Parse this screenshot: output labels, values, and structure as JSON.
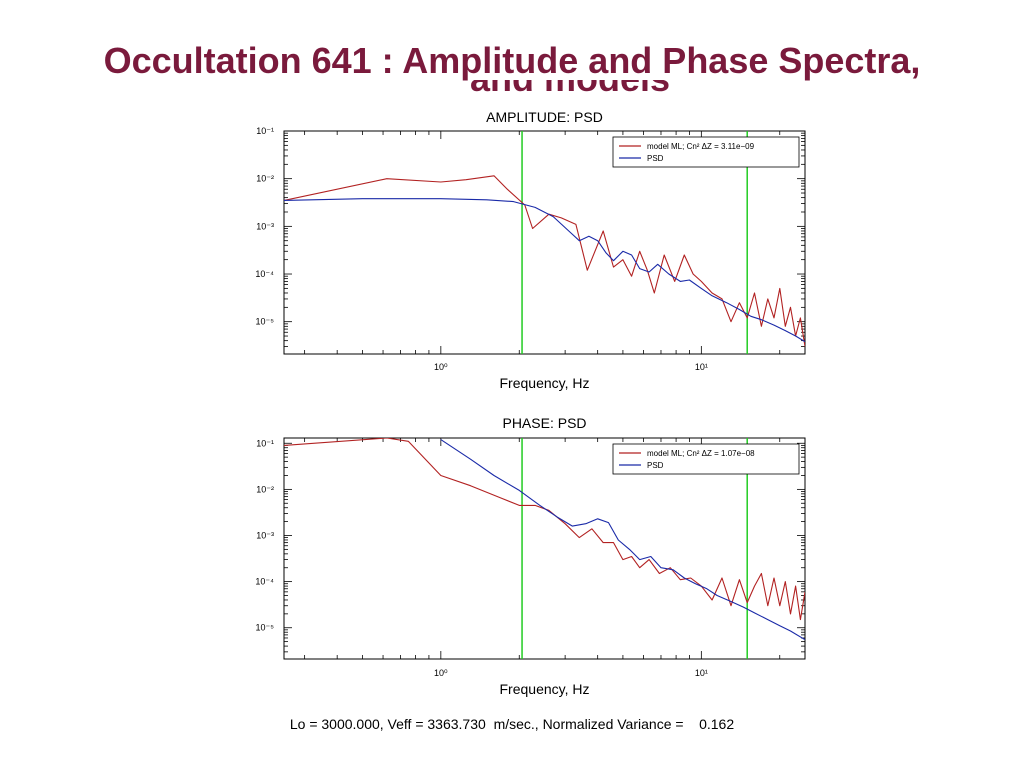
{
  "slide": {
    "title": "Occultation 641 : Amplitude and Phase Spectra,",
    "title_continued": "and models",
    "footer": "Lo = 3000.000, Veff = 3363.730  m/sec., Normalized Variance =    0.162"
  },
  "colors": {
    "title": "#7a1a3c",
    "model": "#b22222",
    "psd": "#1a2aa8",
    "marker": "#22cc22"
  },
  "chart_data": [
    {
      "type": "line",
      "title": "AMPLITUDE: PSD",
      "xlabel": "Frequency, Hz",
      "ylabel": "",
      "xscale": "log",
      "yscale": "log",
      "xlim": [
        0.25,
        25
      ],
      "ylim": [
        2.1e-06,
        0.1
      ],
      "xticks": [
        {
          "value": 1,
          "label": "10⁰"
        },
        {
          "value": 10,
          "label": "10¹"
        }
      ],
      "yticks": [
        {
          "value": 0.1,
          "label": "10⁻¹"
        },
        {
          "value": 0.01,
          "label": "10⁻²"
        },
        {
          "value": 0.001,
          "label": "10⁻³"
        },
        {
          "value": 0.0001,
          "label": "10⁻⁴"
        },
        {
          "value": 1e-05,
          "label": "10⁻⁵"
        }
      ],
      "vlines": [
        2.05,
        15.0
      ],
      "legend_position": "top-right",
      "series": [
        {
          "name": "model ML; Cn² ΔZ =  3.11e−09",
          "color": "#b22222",
          "x": [
            0.25,
            0.62,
            1.0,
            1.25,
            1.6,
            1.8,
            2.1,
            2.25,
            2.6,
            2.9,
            3.3,
            3.65,
            4.2,
            4.6,
            5.0,
            5.4,
            5.8,
            6.2,
            6.6,
            7.2,
            7.9,
            8.6,
            9.3,
            10.0,
            11.0,
            12.0,
            13.0,
            14.0,
            15.0,
            16.0,
            17.0,
            18.0,
            19.0,
            20.0,
            21.0,
            22.0,
            23.0,
            24.0,
            25.0
          ],
          "y": [
            0.0035,
            0.01,
            0.0085,
            0.0095,
            0.0115,
            0.006,
            0.0028,
            0.0009,
            0.0018,
            0.0015,
            0.0011,
            0.00012,
            0.0008,
            0.00014,
            0.0002,
            9e-05,
            0.0003,
            0.00012,
            4e-05,
            0.00025,
            7e-05,
            0.00025,
            0.0001,
            7e-05,
            4e-05,
            3e-05,
            1e-05,
            2.5e-05,
            1.2e-05,
            4e-05,
            8e-06,
            3e-05,
            1.2e-05,
            5e-05,
            8e-06,
            2e-05,
            5e-06,
            1.2e-05,
            3e-06
          ]
        },
        {
          "name": "PSD",
          "color": "#1a2aa8",
          "x": [
            0.25,
            0.5,
            1.0,
            1.5,
            1.9,
            2.3,
            2.7,
            3.1,
            3.4,
            3.7,
            4.0,
            4.3,
            4.6,
            5.0,
            5.4,
            5.8,
            6.3,
            6.8,
            7.5,
            8.3,
            9.0,
            10.0,
            11.0,
            12.5,
            14.0,
            15.5,
            17.0,
            19.0,
            21.0,
            23.0,
            25.0
          ],
          "y": [
            0.0035,
            0.0038,
            0.0038,
            0.0036,
            0.0033,
            0.0025,
            0.0016,
            0.0008,
            0.0005,
            0.00062,
            0.0005,
            0.00028,
            0.00019,
            0.0003,
            0.00025,
            0.00013,
            0.00011,
            0.00016,
            0.0001,
            7e-05,
            7.5e-05,
            5e-05,
            3.5e-05,
            2.5e-05,
            1.8e-05,
            1.3e-05,
            1.1e-05,
            8.5e-06,
            6.5e-06,
            5e-06,
            3.8e-06
          ]
        }
      ]
    },
    {
      "type": "line",
      "title": "PHASE:  PSD",
      "xlabel": "Frequency, Hz",
      "ylabel": "",
      "xscale": "log",
      "yscale": "log",
      "xlim": [
        0.25,
        25
      ],
      "ylim": [
        2.1e-06,
        0.13
      ],
      "xticks": [
        {
          "value": 1,
          "label": "10⁰"
        },
        {
          "value": 10,
          "label": "10¹"
        }
      ],
      "yticks": [
        {
          "value": 0.1,
          "label": "10⁻¹"
        },
        {
          "value": 0.01,
          "label": "10⁻²"
        },
        {
          "value": 0.001,
          "label": "10⁻³"
        },
        {
          "value": 0.0001,
          "label": "10⁻⁴"
        },
        {
          "value": 1e-05,
          "label": "10⁻⁵"
        }
      ],
      "vlines": [
        2.05,
        15.0
      ],
      "legend_position": "top-right",
      "series": [
        {
          "name": "model ML; Cn² ΔZ =  1.07e−08",
          "color": "#b22222",
          "x": [
            0.25,
            0.62,
            0.75,
            1.0,
            1.3,
            1.7,
            2.0,
            2.3,
            2.6,
            3.0,
            3.4,
            3.8,
            4.2,
            4.6,
            5.0,
            5.4,
            5.8,
            6.3,
            6.9,
            7.6,
            8.3,
            9.1,
            10.0,
            11.0,
            12.0,
            13.0,
            14.0,
            15.0,
            16.0,
            17.0,
            18.0,
            19.0,
            20.0,
            21.0,
            22.0,
            23.0,
            24.0,
            25.0
          ],
          "y": [
            0.09,
            0.13,
            0.11,
            0.02,
            0.012,
            0.0065,
            0.0045,
            0.0045,
            0.0035,
            0.0018,
            0.0009,
            0.0014,
            0.0007,
            0.0007,
            0.0003,
            0.00035,
            0.0002,
            0.0003,
            0.00015,
            0.0002,
            0.00011,
            0.00012,
            8e-05,
            4e-05,
            0.00012,
            3e-05,
            0.00011,
            3.5e-05,
            8e-05,
            0.00015,
            3e-05,
            0.00012,
            3e-05,
            0.0001,
            2e-05,
            8e-05,
            1.5e-05,
            6e-05
          ]
        },
        {
          "name": "PSD",
          "color": "#1a2aa8",
          "x": [
            1.0,
            1.3,
            1.6,
            2.0,
            2.4,
            2.8,
            3.2,
            3.6,
            4.0,
            4.4,
            4.8,
            5.3,
            5.8,
            6.4,
            7.0,
            7.8,
            8.6,
            9.5,
            10.5,
            11.5,
            13.0,
            14.5,
            16.0,
            18.0,
            20.0,
            22.0,
            25.0
          ],
          "y": [
            0.12,
            0.045,
            0.02,
            0.0095,
            0.0045,
            0.0025,
            0.0016,
            0.0018,
            0.0023,
            0.0019,
            0.0008,
            0.0005,
            0.0003,
            0.00035,
            0.0002,
            0.00018,
            0.00012,
            9e-05,
            7e-05,
            5e-05,
            3.7e-05,
            2.8e-05,
            2.1e-05,
            1.5e-05,
            1.1e-05,
            8.5e-06,
            5.5e-06
          ]
        }
      ]
    }
  ]
}
